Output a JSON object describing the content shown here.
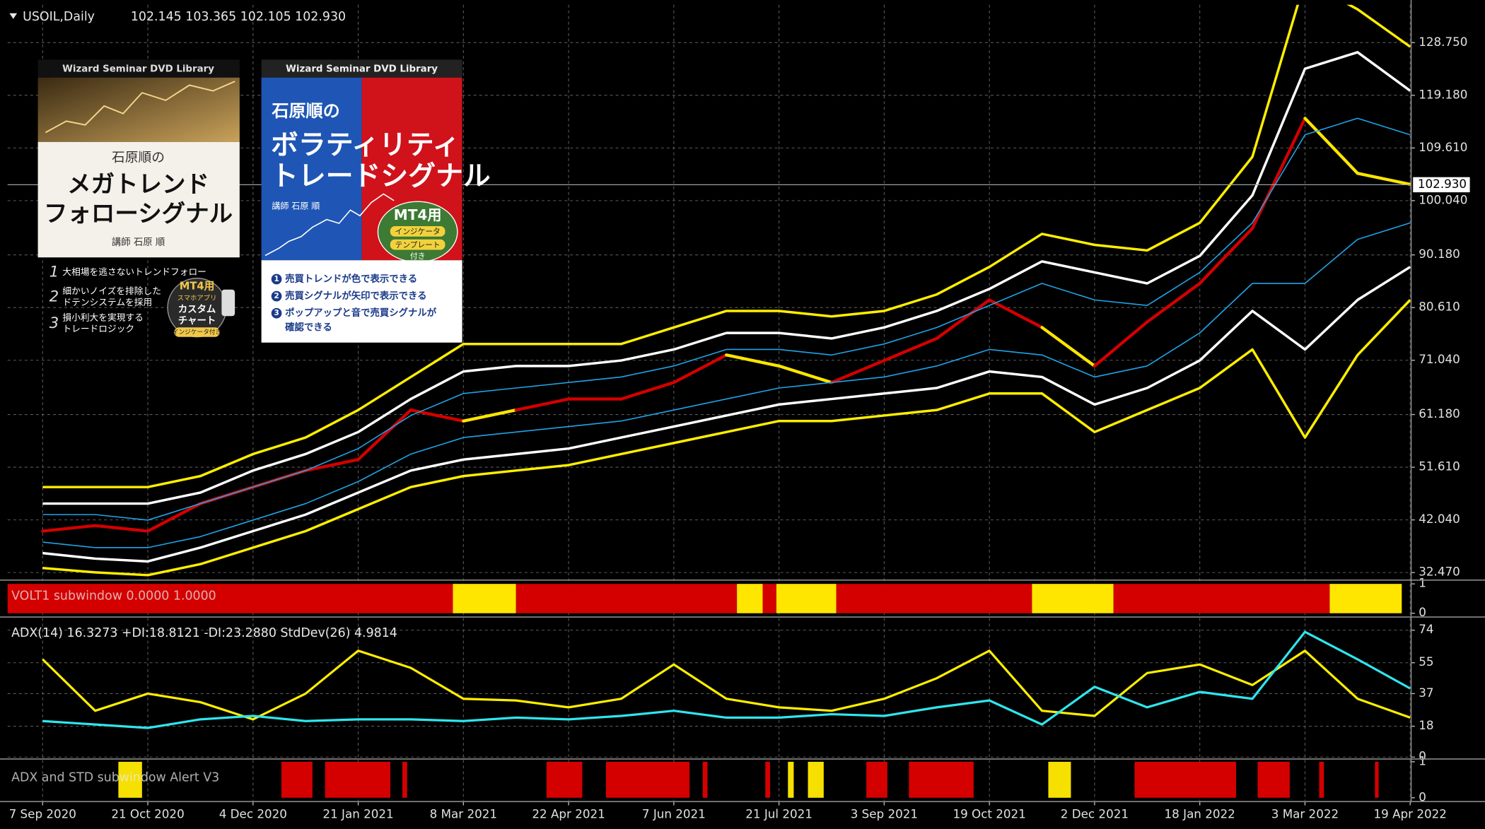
{
  "chart_data": [
    {
      "type": "line",
      "title": "USOIL,Daily",
      "subtitle": "102.145 103.365 102.105 102.930",
      "categories": [
        "7 Sep 2020",
        null,
        "21 Oct 2020",
        null,
        "4 Dec 2020",
        null,
        "21 Jan 2021",
        null,
        "8 Mar 2021",
        null,
        "22 Apr 2021",
        null,
        "7 Jun 2021",
        null,
        "21 Jul 2021",
        null,
        "3 Sep 2021",
        null,
        "19 Oct 2021",
        null,
        "2 Dec 2021",
        null,
        "18 Jan 2022",
        null,
        "3 Mar 2022",
        null,
        "19 Apr 2022"
      ],
      "series": [
        {
          "values": [
            40,
            41,
            40,
            45,
            48,
            51,
            53,
            62,
            60,
            62,
            64,
            64,
            67,
            72,
            70,
            67,
            71,
            75,
            82,
            77,
            70,
            78,
            85,
            95,
            115,
            105,
            103
          ]
        },
        {
          "color": "#ffee00",
          "width": 2.6,
          "values": [
            48,
            48,
            48,
            50,
            54,
            57,
            62,
            68,
            74,
            74,
            74,
            74,
            77,
            80,
            80,
            79,
            80,
            83,
            88,
            94,
            92,
            91,
            96,
            108,
            140,
            134.8,
            128
          ]
        },
        {
          "color": "#ffffff",
          "width": 2.6,
          "values": [
            45,
            45,
            45,
            47,
            51,
            54,
            58,
            64,
            69,
            70,
            70,
            71,
            73,
            76,
            76,
            75,
            77,
            80,
            84,
            89,
            87,
            85,
            90,
            101,
            124,
            127,
            120
          ]
        },
        {
          "color": "#1fa3e6",
          "width": 1.2,
          "values": [
            43,
            43,
            42,
            45,
            48,
            51,
            55,
            61,
            65,
            66,
            67,
            68,
            70,
            73,
            73,
            72,
            74,
            77,
            81,
            85,
            82,
            81,
            87,
            96,
            112,
            115,
            112
          ]
        },
        {
          "color": "#1fa3e6",
          "width": 1.2,
          "values": [
            38,
            37,
            37,
            39,
            42,
            45,
            49,
            54,
            57,
            58,
            59,
            60,
            62,
            64,
            66,
            67,
            68,
            70,
            73,
            72,
            68,
            70,
            76,
            85,
            85,
            93,
            96
          ]
        },
        {
          "color": "#ffffff",
          "width": 2.6,
          "values": [
            36,
            35,
            34.5,
            37,
            40,
            43,
            47,
            51,
            53,
            54,
            55,
            57,
            59,
            61,
            63,
            64,
            65,
            66,
            69,
            68,
            63,
            66,
            71,
            80,
            73,
            82,
            88
          ]
        },
        {
          "color": "#ffee00",
          "width": 2.6,
          "values": [
            33.3,
            32.5,
            32,
            34,
            37,
            40,
            44,
            48,
            50,
            51,
            52,
            54,
            56,
            58,
            60,
            60,
            61,
            62,
            65,
            65,
            58,
            62,
            66,
            73,
            57,
            72,
            82
          ]
        }
      ],
      "ylim": [
        31.27,
        135.63
      ],
      "yticks": [
        {
          "value": 32.47,
          "label": "32.470"
        },
        {
          "value": 42.04,
          "label": "42.040"
        },
        {
          "value": 51.61,
          "label": "51.610"
        },
        {
          "value": 61.18,
          "label": "61.180"
        },
        {
          "value": 71.04,
          "label": "71.040"
        },
        {
          "value": 80.61,
          "label": "80.610"
        },
        {
          "value": 90.18,
          "label": "90.180"
        },
        {
          "value": 100.04,
          "label": "100.040"
        },
        {
          "value": 109.61,
          "label": "109.610"
        },
        {
          "value": 119.18,
          "label": "119.180"
        },
        {
          "value": 128.75,
          "label": "128.750"
        }
      ],
      "current_price": {
        "value": 102.93,
        "label": "102.930"
      },
      "grid": true
    },
    {
      "type": "bar",
      "title": "VOLT1 subwindow 0.0000 1.0000",
      "ylim": [
        0,
        1
      ],
      "yticks": [
        1,
        0
      ],
      "grid": false,
      "bars": [
        {
          "from": -0.67,
          "to": 7.8,
          "value": 1,
          "color": "#d40000"
        },
        {
          "from": 7.8,
          "to": 9.0,
          "value": 1,
          "color": "#ffe600"
        },
        {
          "from": 9.0,
          "to": 13.2,
          "value": 1,
          "color": "#d40000"
        },
        {
          "from": 13.2,
          "to": 13.69,
          "value": 1,
          "color": "#ffe600"
        },
        {
          "from": 13.69,
          "to": 13.95,
          "value": 1,
          "color": "#d40000"
        },
        {
          "from": 13.95,
          "to": 15.09,
          "value": 1,
          "color": "#ffe600"
        },
        {
          "from": 15.09,
          "to": 18.81,
          "value": 1,
          "color": "#d40000"
        },
        {
          "from": 18.81,
          "to": 20.36,
          "value": 1,
          "color": "#ffe600"
        },
        {
          "from": 20.36,
          "to": 24.47,
          "value": 1,
          "color": "#d40000"
        },
        {
          "from": 24.47,
          "to": 25.84,
          "value": 1,
          "color": "#ffe600"
        }
      ]
    },
    {
      "type": "line",
      "title": "ADX(14) 16.3273 +DI:18.8121 -DI:23.2880  StdDev(26) 4.9814",
      "ylim": [
        0,
        80
      ],
      "yticks": [
        74,
        55,
        37,
        18,
        0
      ],
      "grid": true,
      "series": [
        {
          "color": "#ffee00",
          "width": 2.4,
          "values": [
            57,
            27,
            37,
            32,
            22,
            37,
            62,
            52,
            34,
            33,
            29,
            34,
            54,
            34,
            29,
            27,
            34,
            46,
            62,
            27,
            24,
            49,
            54,
            42,
            62,
            34,
            23
          ]
        },
        {
          "color": "#2ee6ee",
          "width": 2.4,
          "values": [
            21,
            19,
            17,
            22,
            24,
            21,
            22,
            22,
            21,
            23,
            22,
            24,
            27,
            23,
            23,
            25,
            24,
            29,
            33,
            19,
            41,
            29,
            38,
            34,
            73,
            57,
            40
          ]
        }
      ]
    },
    {
      "type": "bar",
      "title": "ADX and STD subwindow Alert V3",
      "ylim": [
        0,
        1
      ],
      "yticks": [
        1,
        0
      ],
      "grid": false,
      "bars": [
        {
          "from": 1.44,
          "to": 1.89,
          "value": 1,
          "color": "#f5e000"
        },
        {
          "from": 4.54,
          "to": 5.13,
          "value": 1,
          "color": "#d40000"
        },
        {
          "from": 5.37,
          "to": 6.61,
          "value": 1,
          "color": "#d40000"
        },
        {
          "from": 6.84,
          "to": 6.93,
          "value": 1,
          "color": "#d40000"
        },
        {
          "from": 9.58,
          "to": 10.26,
          "value": 1,
          "color": "#d40000"
        },
        {
          "from": 10.71,
          "to": 12.3,
          "value": 1,
          "color": "#d40000"
        },
        {
          "from": 12.55,
          "to": 12.64,
          "value": 1,
          "color": "#d40000"
        },
        {
          "from": 13.74,
          "to": 13.83,
          "value": 1,
          "color": "#d40000"
        },
        {
          "from": 14.17,
          "to": 14.28,
          "value": 1,
          "color": "#f5e000"
        },
        {
          "from": 14.55,
          "to": 14.85,
          "value": 1,
          "color": "#f5e000"
        },
        {
          "from": 15.66,
          "to": 16.06,
          "value": 1,
          "color": "#d40000"
        },
        {
          "from": 16.47,
          "to": 17.7,
          "value": 1,
          "color": "#d40000"
        },
        {
          "from": 19.12,
          "to": 19.55,
          "value": 1,
          "color": "#f5e000"
        },
        {
          "from": 20.76,
          "to": 22.69,
          "value": 1,
          "color": "#d40000"
        },
        {
          "from": 23.1,
          "to": 23.71,
          "value": 1,
          "color": "#d40000"
        },
        {
          "from": 24.27,
          "to": 24.36,
          "value": 1,
          "color": "#d40000"
        },
        {
          "from": 25.33,
          "to": 25.4,
          "value": 1,
          "color": "#d40000"
        }
      ]
    }
  ],
  "covers": [
    {
      "library": "Wizard Seminar DVD Library",
      "author_line": "石原順の",
      "title_lines": [
        "メガトレンド",
        "フォローシグナル"
      ],
      "lecturer": "講師 石原 順",
      "points": [
        {
          "num": "1",
          "lines": [
            "大相場を逃さないトレンドフォロー"
          ]
        },
        {
          "num": "2",
          "lines": [
            "細かいノイズを排除した",
            "ドテンシステムを採用"
          ]
        },
        {
          "num": "3",
          "lines": [
            "損小利大を実現する",
            "トレードロジック"
          ]
        }
      ],
      "badge": [
        "MT4用",
        "スマホアプリ",
        "カスタム",
        "チャート",
        "インジケータ付き"
      ]
    },
    {
      "library": "Wizard Seminar DVD Library",
      "author_line": "石原順の",
      "title_lines": [
        "ボラティリティ",
        "トレードシグナル"
      ],
      "lecturer": "講師 石原 順",
      "points": [
        {
          "num": "1",
          "lines": [
            "売買トレンドが色で表示できる"
          ]
        },
        {
          "num": "2",
          "lines": [
            "売買シグナルが矢印で表示できる"
          ]
        },
        {
          "num": "3",
          "lines": [
            "ポップアップと音で売買シグナルが",
            "確認できる"
          ]
        }
      ],
      "badge": [
        "MT4用",
        "インジケータ",
        "テンプレート",
        "付き"
      ]
    }
  ]
}
